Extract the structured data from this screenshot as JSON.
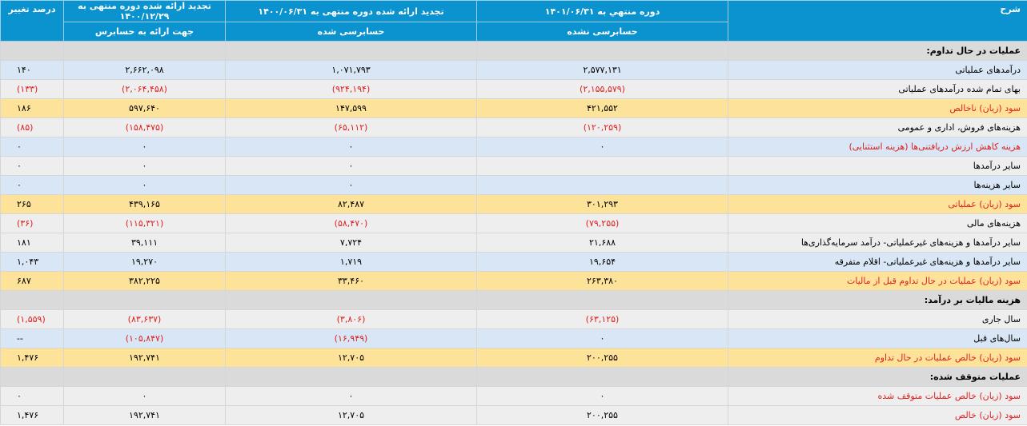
{
  "header": {
    "description": "شرح",
    "period_current": "دوره منتهي به ۱۴۰۱/۰۶/۳۱",
    "period_current_sub": "حسابرسی نشده",
    "period_prev": "تجدید ارائه شده دوره منتهی به ۱۴۰۰/۰۶/۳۱",
    "period_prev_sub": "حسابرسی شده",
    "period_year": "تجدید ارائه شده دوره منتهی به ۱۴۰۰/۱۲/۲۹",
    "period_year_sub": "جهت ارائه به حسابرس",
    "percent_change": "درصد تغییر"
  },
  "colors": {
    "header": "#0a93cf",
    "blue_row": "#d8e6f5",
    "gray_row": "#eeeeee",
    "gold_row": "#fde29a",
    "section_row": "#dadada",
    "negative": "#e02020"
  },
  "rows": [
    {
      "type": "section",
      "desc": "عملیات در حال تداوم:",
      "v1": "",
      "v2": "",
      "v3": "",
      "pct": ""
    },
    {
      "type": "blue",
      "desc": "درآمدهای عملیاتی",
      "v1": "۲,۵۷۷,۱۳۱",
      "v2": "۱,۰۷۱,۷۹۳",
      "v3": "۲,۶۶۲,۰۹۸",
      "pct": "۱۴۰"
    },
    {
      "type": "gray",
      "desc": "بهای تمام شده درآمدهای عملیاتی",
      "v1": "(۲,۱۵۵,۵۷۹)",
      "v2": "(۹۲۴,۱۹۴)",
      "v3": "(۲,۰۶۴,۴۵۸)",
      "pct": "(۱۳۳)"
    },
    {
      "type": "gold",
      "desc": "سود (زیان) ناخالص",
      "v1": "۴۲۱,۵۵۲",
      "v2": "۱۴۷,۵۹۹",
      "v3": "۵۹۷,۶۴۰",
      "pct": "۱۸۶"
    },
    {
      "type": "gray",
      "desc": "هزینه‌های فروش، اداری و عمومی",
      "v1": "(۱۲۰,۲۵۹)",
      "v2": "(۶۵,۱۱۲)",
      "v3": "(۱۵۸,۴۷۵)",
      "pct": "(۸۵)"
    },
    {
      "type": "blue",
      "desc": "هزینه کاهش ارزش دریافتنی‌ها (هزینه استثنایی)",
      "v1": "۰",
      "v2": "۰",
      "v3": "۰",
      "pct": "۰"
    },
    {
      "type": "gray",
      "desc": "سایر درآمدها",
      "v1": "",
      "v2": "۰",
      "v3": "۰",
      "pct": "۰"
    },
    {
      "type": "blue",
      "desc": "سایر هزینه‌ها",
      "v1": "",
      "v2": "۰",
      "v3": "۰",
      "pct": "۰"
    },
    {
      "type": "gold",
      "desc": "سود (زیان) عملیاتی",
      "v1": "۳۰۱,۲۹۳",
      "v2": "۸۲,۴۸۷",
      "v3": "۴۳۹,۱۶۵",
      "pct": "۲۶۵"
    },
    {
      "type": "gray",
      "desc": "هزینه‌های مالی",
      "v1": "(۷۹,۲۵۵)",
      "v2": "(۵۸,۴۷۰)",
      "v3": "(۱۱۵,۳۲۱)",
      "pct": "(۳۶)"
    },
    {
      "type": "gray",
      "desc": "سایر درآمدها و هزینه‌های غیرعملیاتی- درآمد سرمایه‌گذاری‌ها",
      "v1": "۲۱,۶۸۸",
      "v2": "۷,۷۲۴",
      "v3": "۳۹,۱۱۱",
      "pct": "۱۸۱"
    },
    {
      "type": "blue",
      "desc": "سایر درآمدها و هزینه‌های غیرعملیاتی- اقلام متفرقه",
      "v1": "۱۹,۶۵۴",
      "v2": "۱,۷۱۹",
      "v3": "۱۹,۲۷۰",
      "pct": "۱,۰۴۳"
    },
    {
      "type": "gold",
      "desc": "سود (زیان) عملیات در حال تداوم قبل از مالیات",
      "v1": "۲۶۳,۳۸۰",
      "v2": "۳۳,۴۶۰",
      "v3": "۳۸۲,۲۲۵",
      "pct": "۶۸۷"
    },
    {
      "type": "section",
      "desc": "هزینه مالیات بر درآمد:",
      "v1": "",
      "v2": "",
      "v3": "",
      "pct": ""
    },
    {
      "type": "gray",
      "desc": "سال جاری",
      "v1": "(۶۳,۱۲۵)",
      "v2": "(۳,۸۰۶)",
      "v3": "(۸۳,۶۳۷)",
      "pct": "(۱,۵۵۹)"
    },
    {
      "type": "blue",
      "desc": "سال‌های قبل",
      "v1": "۰",
      "v2": "(۱۶,۹۴۹)",
      "v3": "(۱۰۵,۸۴۷)",
      "pct": "--"
    },
    {
      "type": "gold",
      "desc": "سود (زیان) خالص عملیات در حال تداوم",
      "v1": "۲۰۰,۲۵۵",
      "v2": "۱۲,۷۰۵",
      "v3": "۱۹۲,۷۴۱",
      "pct": "۱,۴۷۶"
    },
    {
      "type": "section",
      "desc": "عملیات متوقف شده:",
      "v1": "",
      "v2": "",
      "v3": "",
      "pct": ""
    },
    {
      "type": "gray",
      "desc": "سود (زیان) خالص عملیات متوقف شده",
      "v1": "۰",
      "v2": "۰",
      "v3": "۰",
      "pct": "۰"
    },
    {
      "type": "gray",
      "desc": "سود (زیان) خالص",
      "v1": "۲۰۰,۲۵۵",
      "v2": "۱۲,۷۰۵",
      "v3": "۱۹۲,۷۴۱",
      "pct": "۱,۴۷۶"
    }
  ]
}
